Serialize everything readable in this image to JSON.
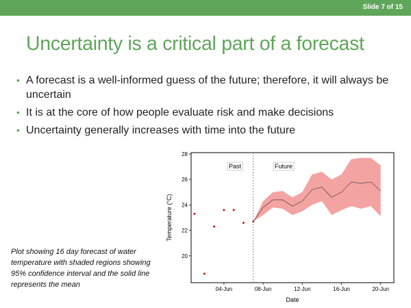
{
  "header": {
    "slide_counter": "Slide 7 of 15"
  },
  "colors": {
    "accent": "#5fa65a",
    "band": "#f4a3a3",
    "point": "#cc1111"
  },
  "title": "Uncertainty is a critical part of a forecast",
  "bullets": [
    "A forecast is a well-informed guess of the future; therefore, it will always be uncertain",
    "It is at the core of how people evaluate risk and make decisions",
    "Uncertainty generally increases with time into the future"
  ],
  "caption": "Plot showing 16 day forecast of water temperature with shaded regions showing 95% confidence interval and the solid line represents the mean",
  "chart_data": {
    "type": "line",
    "xlabel": "Date",
    "ylabel": "Temperature (°C)",
    "xlim": [
      "2021-06-01",
      "2021-06-21"
    ],
    "ylim": [
      18,
      28
    ],
    "yticks": [
      20,
      22,
      24,
      26,
      28
    ],
    "xticks": [
      {
        "date": "2021-06-04",
        "label": "04-Jun"
      },
      {
        "date": "2021-06-08",
        "label": "08-Jun"
      },
      {
        "date": "2021-06-12",
        "label": "12-Jun"
      },
      {
        "date": "2021-06-16",
        "label": "16-Jun"
      },
      {
        "date": "2021-06-20",
        "label": "20-Jun"
      }
    ],
    "divider_date": "2021-06-07",
    "annotations": {
      "past": "Past",
      "future": "Future"
    },
    "observed": [
      {
        "x": "2021-06-01",
        "y": 23.3
      },
      {
        "x": "2021-06-02",
        "y": 18.6
      },
      {
        "x": "2021-06-03",
        "y": 22.3
      },
      {
        "x": "2021-06-04",
        "y": 23.6
      },
      {
        "x": "2021-06-05",
        "y": 23.6
      },
      {
        "x": "2021-06-06",
        "y": 22.6
      },
      {
        "x": "2021-06-07",
        "y": 22.7
      }
    ],
    "forecast": [
      {
        "x": "2021-06-07",
        "mean": 22.7,
        "lower": 22.7,
        "upper": 22.7
      },
      {
        "x": "2021-06-08",
        "mean": 23.8,
        "lower": 23.2,
        "upper": 24.3
      },
      {
        "x": "2021-06-09",
        "mean": 24.4,
        "lower": 23.8,
        "upper": 25.0
      },
      {
        "x": "2021-06-10",
        "mean": 24.4,
        "lower": 23.7,
        "upper": 25.1
      },
      {
        "x": "2021-06-11",
        "mean": 23.9,
        "lower": 23.2,
        "upper": 24.6
      },
      {
        "x": "2021-06-12",
        "mean": 24.3,
        "lower": 23.5,
        "upper": 25.0
      },
      {
        "x": "2021-06-13",
        "mean": 25.2,
        "lower": 24.0,
        "upper": 26.4
      },
      {
        "x": "2021-06-14",
        "mean": 25.4,
        "lower": 24.3,
        "upper": 26.6
      },
      {
        "x": "2021-06-15",
        "mean": 24.6,
        "lower": 23.2,
        "upper": 26.0
      },
      {
        "x": "2021-06-16",
        "mean": 25.0,
        "lower": 23.6,
        "upper": 26.4
      },
      {
        "x": "2021-06-17",
        "mean": 25.8,
        "lower": 23.9,
        "upper": 27.6
      },
      {
        "x": "2021-06-18",
        "mean": 25.7,
        "lower": 23.7,
        "upper": 27.7
      },
      {
        "x": "2021-06-19",
        "mean": 25.8,
        "lower": 23.9,
        "upper": 27.7
      },
      {
        "x": "2021-06-20",
        "mean": 25.1,
        "lower": 23.1,
        "upper": 27.1
      }
    ]
  }
}
